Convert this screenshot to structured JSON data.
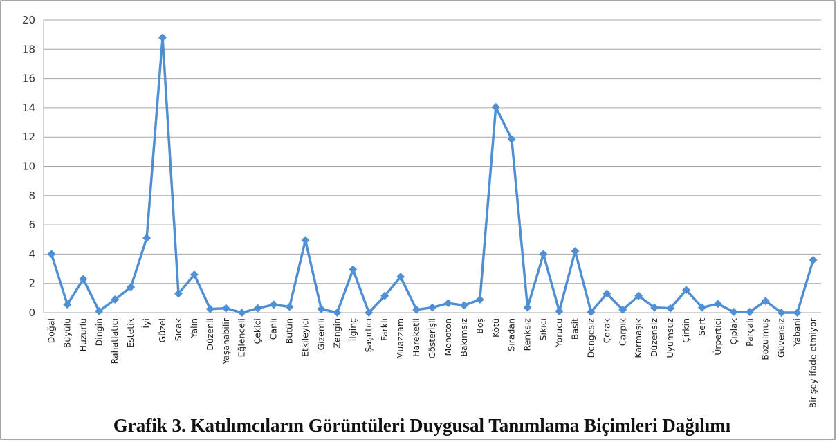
{
  "chart_data": {
    "type": "line",
    "title": "Grafik 3. Katılımcıların Görüntüleri Duygusal Tanımlama Biçimleri Dağılımı",
    "categories": [
      "Doğal",
      "Büyülü",
      "Huzurlu",
      "Dingin",
      "Rahatlatıcı",
      "Estetik",
      "İyi",
      "Güzel",
      "Sıcak",
      "Yalın",
      "Düzenli",
      "Yaşanabilir",
      "Eğlenceli",
      "Çekici",
      "Canlı",
      "Bütün",
      "Etkileyici",
      "Gizemli",
      "Zengin",
      "İlginç",
      "Şaşırtıcı",
      "Farklı",
      "Muazzam",
      "Hareketli",
      "Gösterişli",
      "Monoton",
      "Bakımsız",
      "Boş",
      "Kötü",
      "Sıradan",
      "Renksiz",
      "Sıkıcı",
      "Yorucu",
      "Basit",
      "Dengesiz",
      "Çorak",
      "Çarpık",
      "Karmaşık",
      "Düzensiz",
      "Uyumsuz",
      "Çirkin",
      "Sert",
      "Ürpertici",
      "Çıplak",
      "Parçalı",
      "Bozulmuş",
      "Güvensiz",
      "Yabani",
      "Bir şey ifade etmiyor"
    ],
    "values": [
      4,
      0.55,
      2.3,
      0.1,
      0.9,
      1.75,
      5.1,
      18.8,
      1.3,
      2.6,
      0.25,
      0.3,
      0,
      0.3,
      0.55,
      0.4,
      4.95,
      0.25,
      0,
      2.95,
      0,
      1.15,
      2.45,
      0.2,
      0.35,
      0.65,
      0.5,
      0.9,
      14.05,
      11.85,
      0.35,
      4,
      0.1,
      4.2,
      0.05,
      1.3,
      0.2,
      1.15,
      0.35,
      0.3,
      1.55,
      0.35,
      0.6,
      0.05,
      0.05,
      0.8,
      0,
      0,
      3.6
    ],
    "color": "#4f8fd2",
    "ylim": [
      0,
      20
    ],
    "yticks": [
      0,
      2,
      4,
      6,
      8,
      10,
      12,
      14,
      16,
      18,
      20
    ],
    "grid": true
  }
}
